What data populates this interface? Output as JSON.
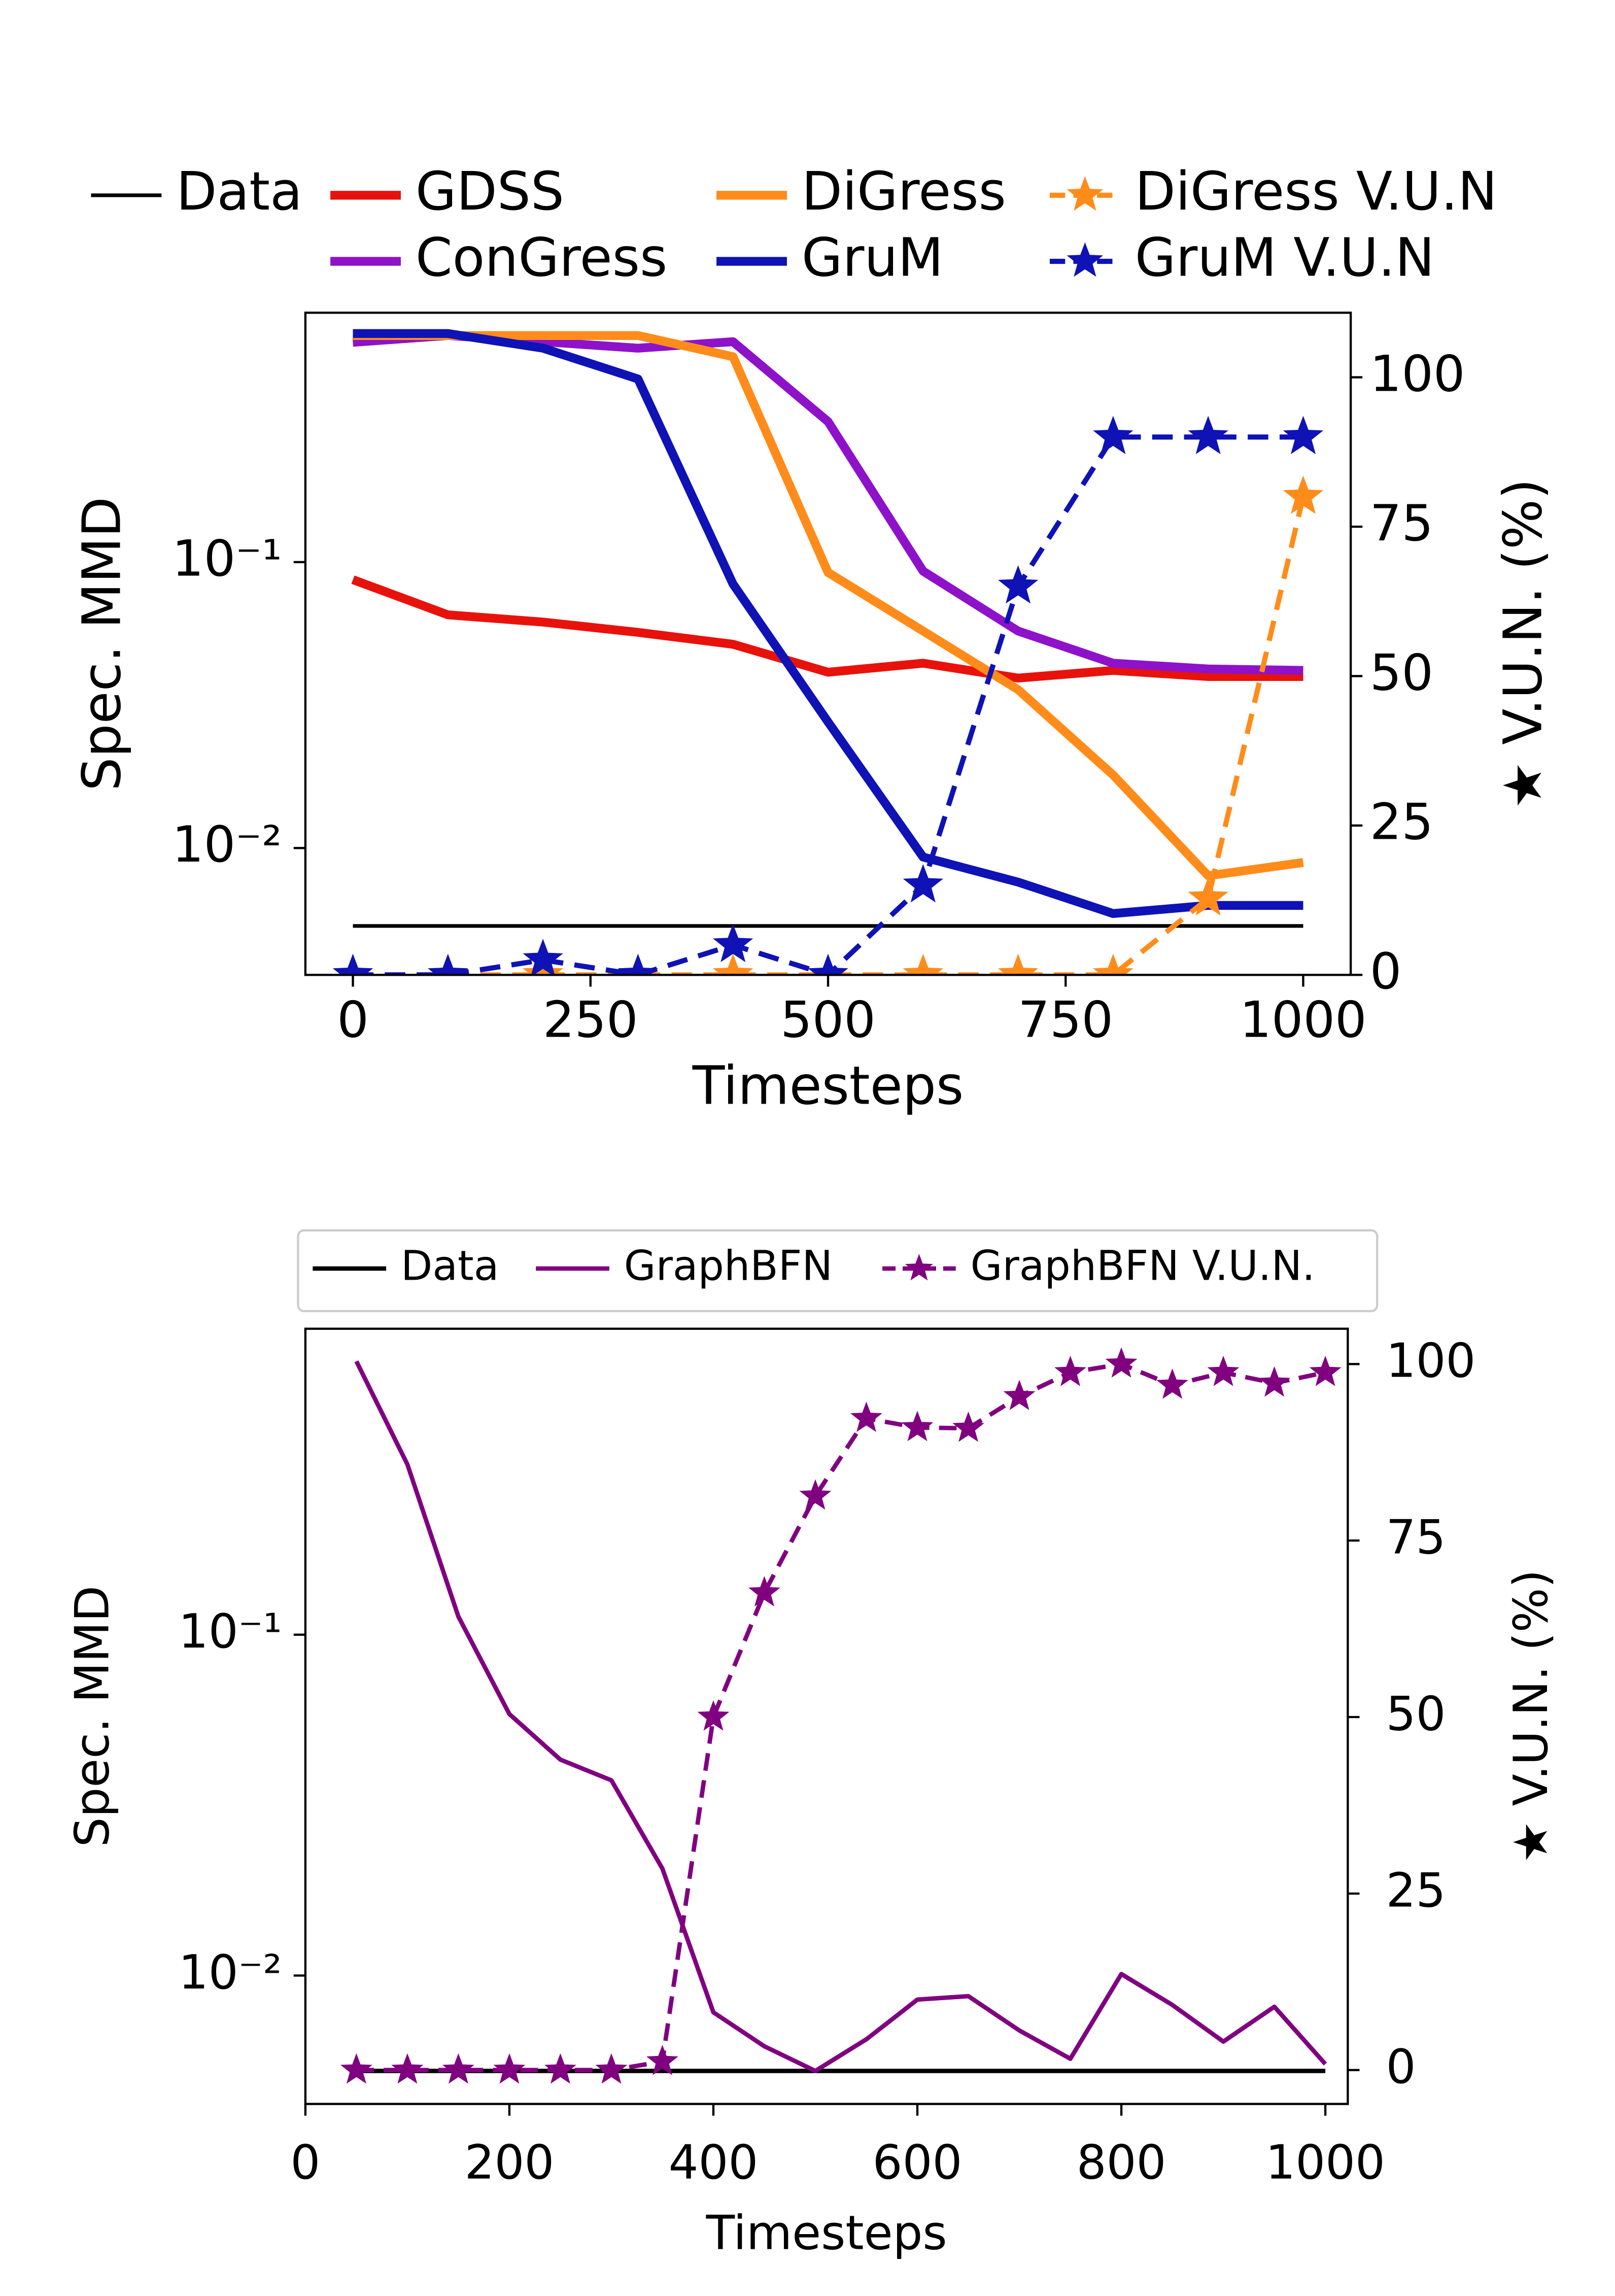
{
  "chart_data": [
    {
      "type": "line",
      "xlabel": "Timesteps",
      "ylabel": "Spec. MMD",
      "y2label": "★ V.U.N. (%)",
      "x": [
        0,
        100,
        200,
        300,
        400,
        500,
        600,
        700,
        800,
        900,
        1000
      ],
      "series": [
        {
          "name": "Data",
          "color": "#000000",
          "x": [
            0,
            1000
          ],
          "values": [
            0.00534,
            0.00534
          ]
        },
        {
          "name": "GDSS",
          "color": "#e8120c",
          "values": [
            0.0868,
            0.0654,
            0.0617,
            0.0568,
            0.0516,
            0.0412,
            0.0443,
            0.0393,
            0.0418,
            0.0398,
            0.0398
          ]
        },
        {
          "name": "ConGress",
          "color": "#8e12c9",
          "values": [
            0.587,
            0.62,
            0.59,
            0.56,
            0.59,
            0.31,
            0.093,
            0.0574,
            0.0443,
            0.0423,
            0.0418
          ]
        },
        {
          "name": "DiGress",
          "color": "#ff8c1a",
          "values": [
            0.62,
            0.62,
            0.62,
            0.62,
            0.523,
            0.092,
            0.0574,
            0.0358,
            0.018,
            0.008,
            0.0089
          ]
        },
        {
          "name": "GruM",
          "color": "#0f12b5",
          "values": [
            0.63,
            0.63,
            0.56,
            0.437,
            0.0838,
            0.0276,
            0.0093,
            0.0076,
            0.0059,
            0.0063,
            0.0063
          ]
        },
        {
          "name": "DiGress V.U.N",
          "color": "#ff8c1a",
          "axis": "y2",
          "linestyle": "dashed",
          "marker": "star",
          "values": [
            0,
            0,
            0,
            0,
            0,
            0,
            0,
            0,
            0,
            12.8,
            80
          ]
        },
        {
          "name": "GruM V.U.N",
          "color": "#0f12b5",
          "axis": "y2",
          "linestyle": "dashed",
          "marker": "star",
          "values": [
            0,
            0,
            2.5,
            0,
            5,
            0,
            15,
            65,
            90,
            90,
            90
          ]
        }
      ],
      "xlim": [
        -50,
        1050
      ],
      "xticks": [
        0,
        250,
        500,
        750,
        1000
      ],
      "yscale": "log",
      "ylim": [
        0.0036,
        0.745
      ],
      "yticks": [
        {
          "value": 0.1,
          "label": "10⁻¹"
        },
        {
          "value": 0.01,
          "label": "10⁻²"
        }
      ],
      "y2lim": [
        0,
        110.8
      ],
      "y2ticks": [
        0,
        25,
        50,
        75,
        100
      ],
      "legend": "top outside"
    },
    {
      "type": "line",
      "xlabel": "Timesteps",
      "ylabel": "Spec. MMD",
      "y2label": "★ V.U.N. (%)",
      "x": [
        50,
        100,
        150,
        200,
        250,
        300,
        350,
        400,
        450,
        500,
        550,
        600,
        650,
        700,
        750,
        800,
        850,
        900,
        950,
        1000
      ],
      "series": [
        {
          "name": "Data",
          "color": "#000000",
          "x": [
            50,
            1000
          ],
          "values": [
            0.00525,
            0.00525
          ]
        },
        {
          "name": "GraphBFN",
          "color": "#800080",
          "values": [
            0.634,
            0.316,
            0.113,
            0.0585,
            0.043,
            0.0374,
            0.0206,
            0.0078,
            0.0062,
            0.00525,
            0.0065,
            0.0085,
            0.0087,
            0.0069,
            0.0057,
            0.0101,
            0.0082,
            0.0064,
            0.0081,
            0.0055
          ]
        },
        {
          "name": "GraphBFN V.U.N.",
          "color": "#800080",
          "axis": "y2",
          "linestyle": "dashed",
          "marker": "star",
          "values": [
            0,
            0,
            0,
            0,
            0,
            0,
            1.2,
            50,
            67.6,
            81.3,
            92.3,
            91,
            90.9,
            95.4,
            98.8,
            100,
            97,
            98.8,
            97.3,
            98.8
          ]
        }
      ],
      "xlim": [
        0,
        1022
      ],
      "xticks": [
        0,
        200,
        400,
        600,
        800,
        1000
      ],
      "yscale": "log",
      "ylim": [
        0.0042,
        0.79
      ],
      "yticks": [
        {
          "value": 0.1,
          "label": "10⁻¹"
        },
        {
          "value": 0.01,
          "label": "10⁻²"
        }
      ],
      "y2lim": [
        -4.8,
        105
      ],
      "y2ticks": [
        0,
        25,
        50,
        75,
        100
      ],
      "legend": "top outside"
    }
  ]
}
